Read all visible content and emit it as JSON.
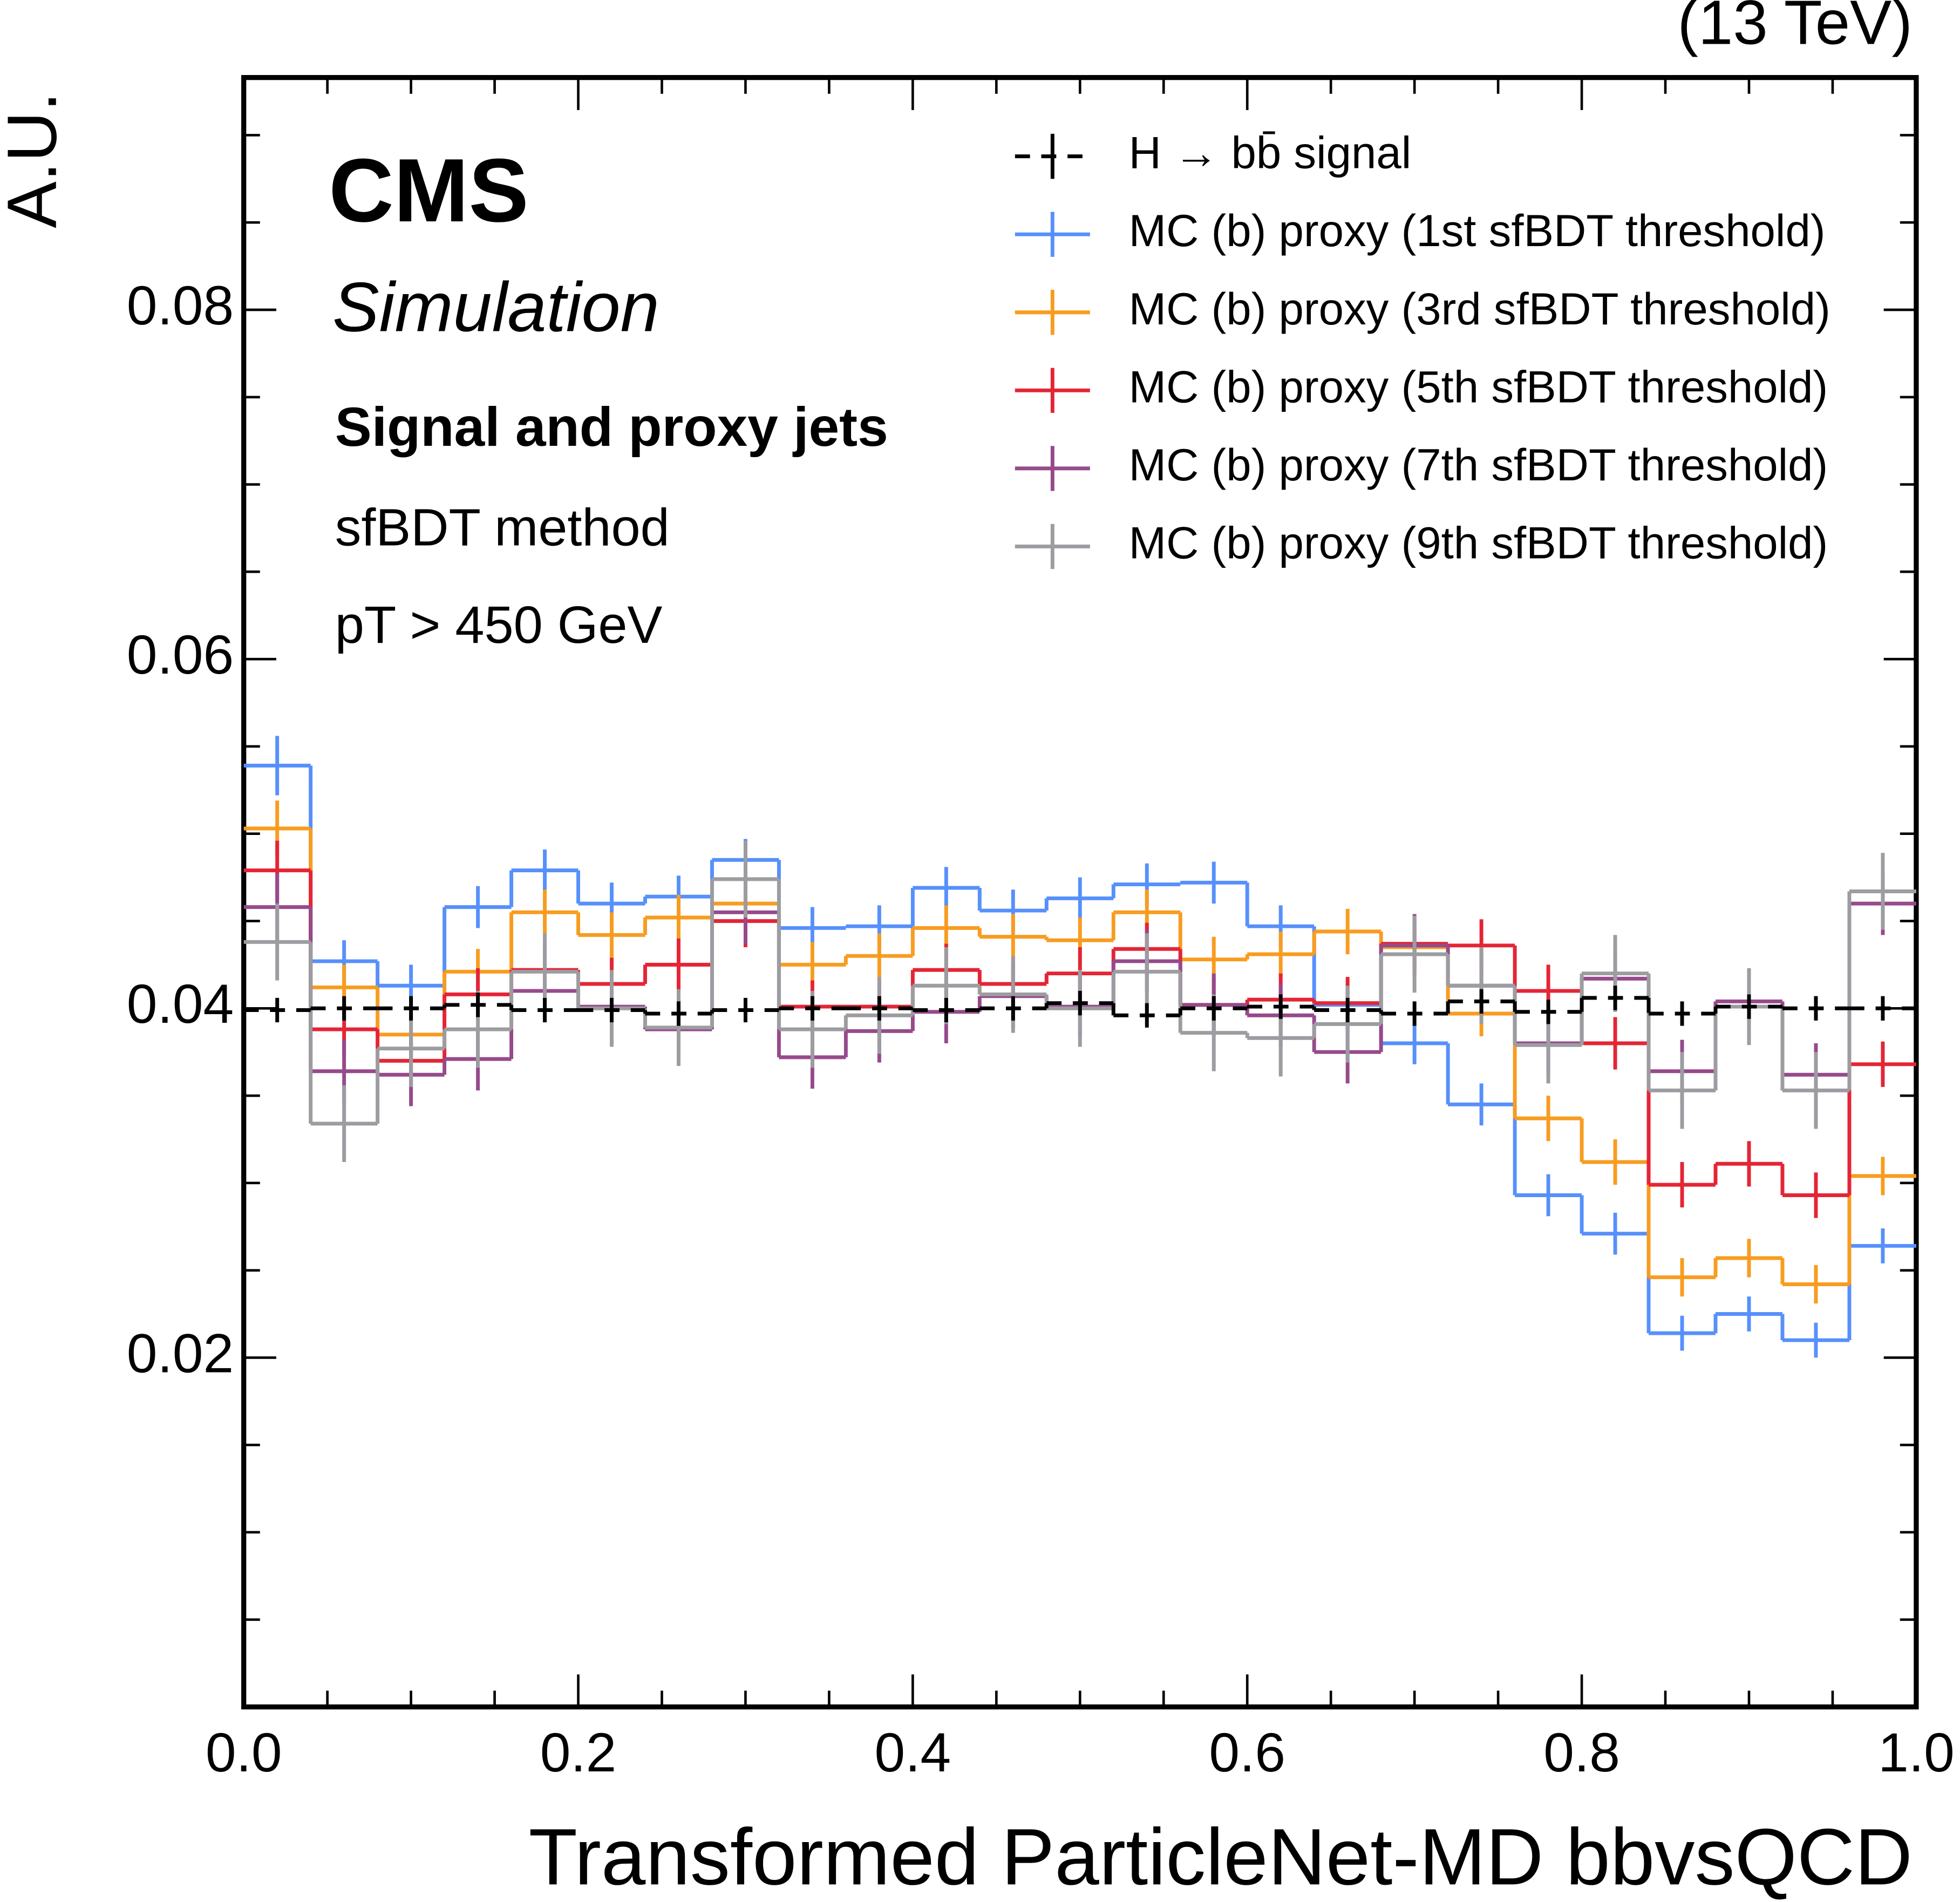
{
  "chart_data": {
    "type": "histogram",
    "energy_label": "(13 TeV)",
    "ylabel": "A.U.",
    "xlabel": "Transformed ParticleNet-MD bbvsQCD",
    "annotations": [
      "CMS",
      "Simulation",
      "Signal and proxy jets",
      "sfBDT method",
      "pT > 450 GeV"
    ],
    "bins": [
      0,
      0.04,
      0.08,
      0.12,
      0.16,
      0.2,
      0.24,
      0.28,
      0.32,
      0.36,
      0.4,
      0.44,
      0.48,
      0.52,
      0.56,
      0.6,
      0.64,
      0.68,
      0.72,
      0.76,
      0.8,
      0.84,
      0.88,
      0.92,
      0.96,
      1
    ],
    "xlim": [
      0,
      1
    ],
    "ylim": [
      0,
      0.0933
    ],
    "xticks": [
      {
        "value": 0,
        "label": "0.0"
      },
      0.2,
      0.4,
      0.6,
      0.8,
      {
        "value": 1,
        "label": "1.0"
      }
    ],
    "yticks": [
      0.02,
      0.04,
      0.06,
      0.08
    ],
    "xminorticks": [
      0.05,
      0.1,
      0.15,
      0.25,
      0.3,
      0.35,
      0.45,
      0.5,
      0.55,
      0.65,
      0.7,
      0.75,
      0.85,
      0.9,
      0.95
    ],
    "yminorticks": [
      0.005,
      0.01,
      0.015,
      0.025,
      0.03,
      0.035,
      0.045,
      0.05,
      0.055,
      0.065,
      0.07,
      0.075,
      0.085,
      0.09
    ],
    "series": [
      {
        "name": "H → bb̄ signal",
        "color": "#000000",
        "dashed": true,
        "values": [
          0.0399,
          0.04,
          0.04,
          0.0402,
          0.0399,
          0.0399,
          0.0397,
          0.0399,
          0.04,
          0.04,
          0.0399,
          0.04,
          0.0403,
          0.0396,
          0.04,
          0.0401,
          0.0399,
          0.0397,
          0.0404,
          0.0398,
          0.0406,
          0.0397,
          0.0401,
          0.04,
          0.04
        ],
        "errors": [
          0.0007,
          0.0007,
          0.0007,
          0.0007,
          0.0007,
          0.0007,
          0.0007,
          0.0007,
          0.0007,
          0.0007,
          0.0007,
          0.0007,
          0.0007,
          0.0007,
          0.0007,
          0.0007,
          0.0007,
          0.0007,
          0.0007,
          0.0007,
          0.0007,
          0.0007,
          0.0007,
          0.0007,
          0.0007
        ]
      },
      {
        "name": "MC (b) proxy (1st sfBDT threshold)",
        "color": "#5790fc",
        "values": [
          0.0539,
          0.0427,
          0.0413,
          0.0458,
          0.0479,
          0.046,
          0.0464,
          0.0485,
          0.0446,
          0.0447,
          0.0469,
          0.0456,
          0.0463,
          0.0471,
          0.0472,
          0.0447,
          0.0402,
          0.038,
          0.0345,
          0.0293,
          0.0271,
          0.0214,
          0.0225,
          0.021,
          0.0264
        ],
        "errors": [
          0.0017,
          0.0012,
          0.0012,
          0.0012,
          0.0012,
          0.0012,
          0.0012,
          0.0012,
          0.0012,
          0.0012,
          0.0012,
          0.0012,
          0.0012,
          0.0012,
          0.0012,
          0.0012,
          0.0012,
          0.0012,
          0.0012,
          0.0012,
          0.0012,
          0.001,
          0.001,
          0.001,
          0.001
        ]
      },
      {
        "name": "MC (b) proxy (3rd sfBDT threshold)",
        "color": "#f89c20",
        "values": [
          0.0503,
          0.0412,
          0.0385,
          0.0421,
          0.0455,
          0.0442,
          0.0452,
          0.046,
          0.0425,
          0.043,
          0.0446,
          0.0441,
          0.0439,
          0.0455,
          0.0428,
          0.0431,
          0.0444,
          0.0435,
          0.0397,
          0.0337,
          0.0312,
          0.0246,
          0.0257,
          0.0242,
          0.0304
        ],
        "errors": [
          0.0016,
          0.0013,
          0.0013,
          0.0013,
          0.0013,
          0.0013,
          0.0013,
          0.0013,
          0.0013,
          0.0013,
          0.0013,
          0.0013,
          0.0013,
          0.0013,
          0.0013,
          0.0013,
          0.0013,
          0.0013,
          0.0013,
          0.0013,
          0.0013,
          0.0011,
          0.0011,
          0.0011,
          0.0011
        ]
      },
      {
        "name": "MC (b) proxy (5th sfBDT threshold)",
        "color": "#e42536",
        "values": [
          0.0479,
          0.0388,
          0.037,
          0.0408,
          0.0422,
          0.0414,
          0.0425,
          0.045,
          0.0401,
          0.0401,
          0.0422,
          0.0414,
          0.042,
          0.0434,
          0.0402,
          0.0405,
          0.0403,
          0.0437,
          0.0436,
          0.041,
          0.038,
          0.0299,
          0.0311,
          0.0293,
          0.0368
        ],
        "errors": [
          0.0017,
          0.0015,
          0.0015,
          0.0015,
          0.0015,
          0.0015,
          0.0015,
          0.0015,
          0.0015,
          0.0015,
          0.0015,
          0.0015,
          0.0015,
          0.0015,
          0.0015,
          0.0015,
          0.0015,
          0.0015,
          0.0015,
          0.0015,
          0.0015,
          0.0013,
          0.0013,
          0.0013,
          0.0013
        ]
      },
      {
        "name": "MC (b) proxy (7th sfBDT threshold)",
        "color": "#964a8b",
        "values": [
          0.0458,
          0.0364,
          0.0362,
          0.0371,
          0.041,
          0.0401,
          0.0388,
          0.0455,
          0.0372,
          0.0387,
          0.0398,
          0.0407,
          0.0401,
          0.0427,
          0.0402,
          0.0396,
          0.0375,
          0.0436,
          0.0413,
          0.038,
          0.0417,
          0.0364,
          0.0404,
          0.0362,
          0.046
        ],
        "errors": [
          0.0019,
          0.0018,
          0.0018,
          0.0018,
          0.0018,
          0.0018,
          0.0018,
          0.0018,
          0.0018,
          0.0018,
          0.0018,
          0.0018,
          0.0018,
          0.0018,
          0.0018,
          0.0018,
          0.0018,
          0.0018,
          0.0018,
          0.0018,
          0.0018,
          0.0018,
          0.0018,
          0.0018,
          0.0018
        ]
      },
      {
        "name": "MC (b) proxy (9th sfBDT threshold)",
        "color": "#9c9ca1",
        "values": [
          0.0438,
          0.0334,
          0.0377,
          0.0388,
          0.0421,
          0.04,
          0.0389,
          0.0474,
          0.0388,
          0.0396,
          0.0413,
          0.0408,
          0.04,
          0.0421,
          0.0386,
          0.0383,
          0.0391,
          0.0431,
          0.0413,
          0.0379,
          0.042,
          0.0353,
          0.0401,
          0.0353,
          0.0467
        ],
        "errors": [
          0.0022,
          0.0022,
          0.0022,
          0.0022,
          0.0022,
          0.0022,
          0.0022,
          0.0022,
          0.0022,
          0.0022,
          0.0022,
          0.0022,
          0.0022,
          0.0022,
          0.0022,
          0.0022,
          0.0022,
          0.0022,
          0.0022,
          0.0022,
          0.0022,
          0.0022,
          0.0022,
          0.0022,
          0.0022
        ]
      }
    ]
  }
}
